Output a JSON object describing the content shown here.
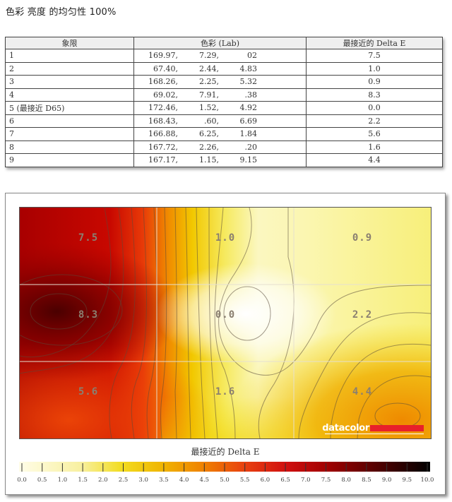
{
  "page": {
    "title": "色彩 亮度 的均匀性 100%"
  },
  "table": {
    "headers": [
      "象限",
      "色彩 (Lab)",
      "最接近的 Delta E"
    ],
    "rows": [
      {
        "quadrant": "1",
        "L": "169.97,",
        "a": "7.29,",
        "b": "02",
        "delta_e": "7.5"
      },
      {
        "quadrant": "2",
        "L": "67.40,",
        "a": "2.44,",
        "b": "4.83",
        "delta_e": "1.0"
      },
      {
        "quadrant": "3",
        "L": "168.26,",
        "a": "2.25,",
        "b": "5.32",
        "delta_e": "0.9"
      },
      {
        "quadrant": "4",
        "L": "69.02,",
        "a": "7.91,",
        "b": ".38",
        "delta_e": "8.3"
      },
      {
        "quadrant": "5 (最接近 D65)",
        "L": "172.46,",
        "a": "1.52,",
        "b": "4.92",
        "delta_e": "0.0"
      },
      {
        "quadrant": "6",
        "L": "168.43,",
        "a": ".60,",
        "b": "6.69",
        "delta_e": "2.2"
      },
      {
        "quadrant": "7",
        "L": "166.88,",
        "a": "6.25,",
        "b": "1.84",
        "delta_e": "5.6"
      },
      {
        "quadrant": "8",
        "L": "167.72,",
        "a": "2.26,",
        "b": ".20",
        "delta_e": "1.6"
      },
      {
        "quadrant": "9",
        "L": "167.17,",
        "a": "1.15,",
        "b": "9.15",
        "delta_e": "4.4"
      }
    ]
  },
  "chart": {
    "brand": "datacolor",
    "brand_bar_color": "#e8202a",
    "legend_title": "最接近的 Delta E",
    "colorbar_ticks": [
      "0.0",
      "0.5",
      "1.0",
      "1.5",
      "2.0",
      "2.5",
      "3.0",
      "3.5",
      "4.0",
      "4.5",
      "5.0",
      "5.5",
      "6.0",
      "6.5",
      "7.0",
      "7.5",
      "8.0",
      "8.5",
      "9.0",
      "9.5",
      "10.0"
    ],
    "cell_labels": [
      "7.5",
      "1.0",
      "0.9",
      "8.3",
      "0.0",
      "2.2",
      "5.6",
      "1.6",
      "4.4"
    ]
  },
  "chart_data": {
    "type": "heatmap",
    "title": "色彩 亮度 的均匀性 100%",
    "xlabel": "",
    "ylabel": "",
    "grid": {
      "rows": 3,
      "cols": 3
    },
    "values": [
      [
        7.5,
        1.0,
        0.9
      ],
      [
        8.3,
        0.0,
        2.2
      ],
      [
        5.6,
        1.6,
        4.4
      ]
    ],
    "colorbar": {
      "label": "最接近的 Delta E",
      "range": [
        0,
        10
      ],
      "step": 0.5,
      "colors": [
        "#fffde8",
        "#f9f2a0",
        "#f2d700",
        "#f0a000",
        "#ef6a00",
        "#e02a10",
        "#b80000",
        "#7a0000",
        "#2a0000",
        "#000000"
      ]
    },
    "contours": true,
    "legend_position": "bottom"
  }
}
